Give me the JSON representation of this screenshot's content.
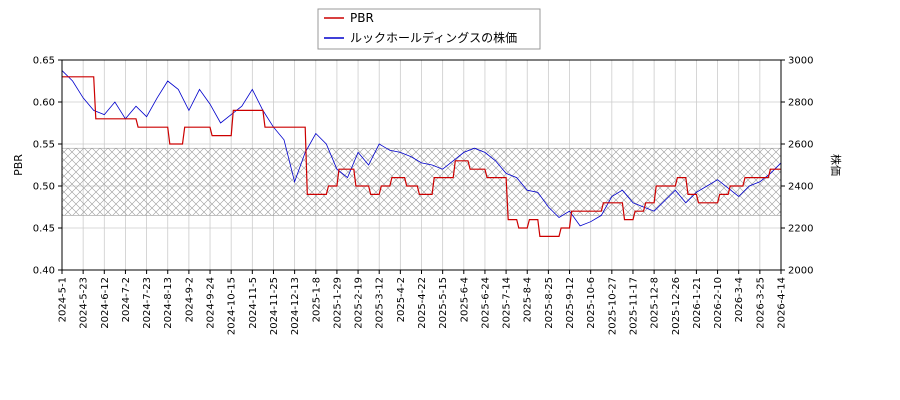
{
  "chart_data": {
    "type": "line",
    "title": "",
    "legend": {
      "placement": "top-center",
      "entries": [
        {
          "name": "PBR",
          "color": "#cc0000"
        },
        {
          "name": "ルックホールディングスの株価",
          "color": "#0000cc"
        }
      ]
    },
    "x_ticks": [
      "2024-5-1",
      "2024-5-23",
      "2024-6-12",
      "2024-7-2",
      "2024-7-23",
      "2024-8-13",
      "2024-9-2",
      "2024-9-24",
      "2024-10-15",
      "2024-11-5",
      "2024-11-25",
      "2024-12-13",
      "2025-1-8",
      "2025-1-29",
      "2025-2-19",
      "2025-3-12",
      "2025-4-2",
      "2025-4-22",
      "2025-5-15",
      "2025-6-4",
      "2025-6-24",
      "2025-7-14",
      "2025-8-4",
      "2025-8-25",
      "2025-9-12",
      "2025-10-6",
      "2025-10-27",
      "2025-11-17",
      "2025-12-8",
      "2025-12-26",
      "2026-1-21",
      "2026-2-10",
      "2026-3-4",
      "2026-3-25",
      "2026-4-14"
    ],
    "y_left": {
      "label": "PBR",
      "range": [
        0.4,
        0.65
      ],
      "ticks": [
        "0.40",
        "0.45",
        "0.50",
        "0.55",
        "0.60",
        "0.65"
      ]
    },
    "y_right": {
      "label": "株価",
      "range": [
        2000,
        3000
      ],
      "ticks": [
        "2000",
        "2200",
        "2400",
        "2600",
        "2800",
        "3000"
      ]
    },
    "grid": true,
    "band": {
      "from": 0.465,
      "to": 0.545,
      "pattern": "crosshatch"
    },
    "series": [
      {
        "name": "PBR",
        "axis": "left",
        "color": "#cc0000",
        "x": [
          0,
          1.5,
          1.6,
          3.5,
          3.6,
          5.0,
          5.1,
          5.7,
          5.8,
          7.0,
          7.1,
          8.0,
          8.1,
          9.5,
          9.6,
          11.5,
          11.6,
          12.5,
          12.6,
          13.0,
          13.1,
          13.8,
          13.9,
          14.5,
          14.6,
          15.0,
          15.1,
          15.5,
          15.6,
          16.2,
          16.3,
          16.8,
          16.9,
          17.5,
          17.6,
          18.5,
          18.6,
          19.2,
          19.3,
          20.0,
          20.1,
          21.0,
          21.1,
          21.5,
          21.6,
          22.0,
          22.1,
          22.5,
          22.6,
          23.5,
          23.6,
          24.0,
          24.1,
          25.5,
          25.6,
          26.5,
          26.6,
          27.0,
          27.1,
          27.5,
          27.6,
          28.0,
          28.1,
          29.0,
          29.1,
          29.5,
          29.6,
          30.0,
          30.1,
          31.0,
          31.1,
          31.5,
          31.6,
          32.2,
          32.3,
          33.4,
          33.5,
          34.0
        ],
        "y": [
          0.63,
          0.63,
          0.58,
          0.58,
          0.57,
          0.57,
          0.55,
          0.55,
          0.57,
          0.57,
          0.56,
          0.56,
          0.59,
          0.59,
          0.57,
          0.57,
          0.49,
          0.49,
          0.5,
          0.5,
          0.52,
          0.52,
          0.5,
          0.5,
          0.49,
          0.49,
          0.5,
          0.5,
          0.51,
          0.51,
          0.5,
          0.5,
          0.49,
          0.49,
          0.51,
          0.51,
          0.53,
          0.53,
          0.52,
          0.52,
          0.51,
          0.51,
          0.46,
          0.46,
          0.45,
          0.45,
          0.46,
          0.46,
          0.44,
          0.44,
          0.45,
          0.45,
          0.47,
          0.47,
          0.48,
          0.48,
          0.46,
          0.46,
          0.47,
          0.47,
          0.48,
          0.48,
          0.5,
          0.5,
          0.51,
          0.51,
          0.49,
          0.49,
          0.48,
          0.48,
          0.49,
          0.49,
          0.5,
          0.5,
          0.51,
          0.51,
          0.52,
          0.52
        ],
        "note_x_unit": "tick index"
      },
      {
        "name": "ルックホールディングスの株価",
        "axis": "right",
        "color": "#0000cc",
        "x": [
          0,
          0.5,
          1.0,
          1.5,
          2.0,
          2.5,
          3.0,
          3.5,
          4.0,
          4.5,
          5.0,
          5.5,
          6.0,
          6.5,
          7.0,
          7.5,
          8.0,
          8.5,
          9.0,
          9.5,
          10.0,
          10.5,
          11.0,
          11.5,
          12.0,
          12.5,
          13.0,
          13.5,
          14.0,
          14.5,
          15.0,
          15.5,
          16.0,
          16.5,
          17.0,
          17.5,
          18.0,
          18.5,
          19.0,
          19.5,
          20.0,
          20.5,
          21.0,
          21.5,
          22.0,
          22.5,
          23.0,
          23.5,
          24.0,
          24.5,
          25.0,
          25.5,
          26.0,
          26.5,
          27.0,
          27.5,
          28.0,
          28.5,
          29.0,
          29.5,
          30.0,
          30.5,
          31.0,
          31.5,
          32.0,
          32.5,
          33.0,
          33.5,
          34.0
        ],
        "y": [
          2950,
          2900,
          2820,
          2760,
          2740,
          2800,
          2720,
          2780,
          2730,
          2820,
          2900,
          2860,
          2760,
          2860,
          2790,
          2700,
          2740,
          2780,
          2860,
          2760,
          2680,
          2620,
          2420,
          2560,
          2650,
          2600,
          2480,
          2440,
          2560,
          2500,
          2600,
          2570,
          2560,
          2540,
          2510,
          2500,
          2480,
          2520,
          2560,
          2580,
          2560,
          2520,
          2460,
          2440,
          2380,
          2370,
          2300,
          2250,
          2280,
          2210,
          2230,
          2260,
          2350,
          2380,
          2320,
          2300,
          2280,
          2330,
          2380,
          2320,
          2370,
          2400,
          2430,
          2390,
          2350,
          2400,
          2420,
          2460,
          2510
        ],
        "note_x_unit": "tick index"
      }
    ]
  }
}
